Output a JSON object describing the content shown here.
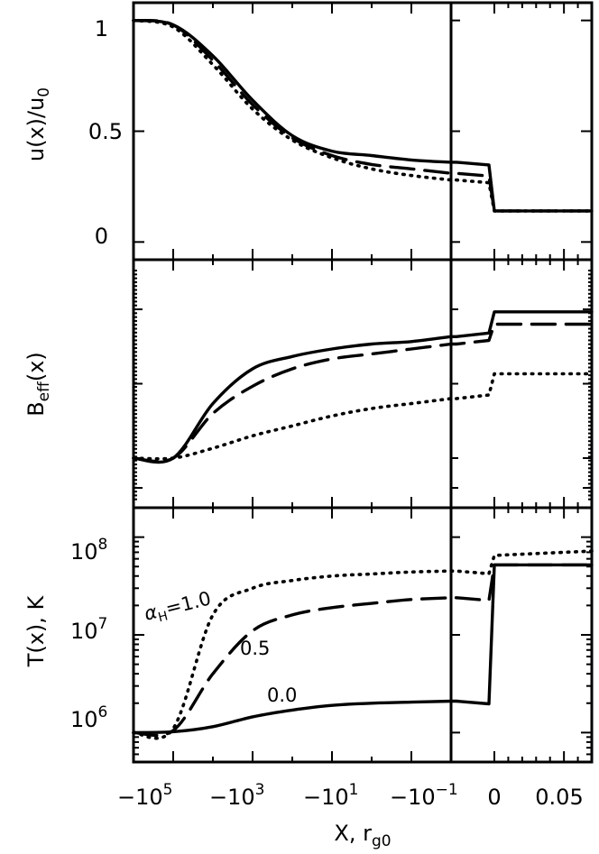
{
  "figure": {
    "xlabel_main": "X, r",
    "xlabel_sub": "g0",
    "x_tick_labels": [
      {
        "base": "−10",
        "exp": "5"
      },
      {
        "base": "−10",
        "exp": "3"
      },
      {
        "base": "−10",
        "exp": "1"
      },
      {
        "base": "−10",
        "exp": "−1"
      },
      {
        "base": "0",
        "exp": ""
      },
      {
        "base": "0.05",
        "exp": ""
      }
    ]
  },
  "chart_data": [
    {
      "type": "line",
      "panel": "top",
      "ylabel": "u(x)/u",
      "ylabel_sub": "0",
      "y_ticks": [
        "1",
        "0.5",
        "0"
      ],
      "ylim": [
        -0.08,
        1.08
      ],
      "x_axis": "broken: log-scaled negative X (left section) and linear X from 0 to 0.07 (right section)",
      "series": [
        {
          "style": "solid",
          "x": [
            "-1e6",
            "-1e5",
            "-1e4",
            "-1e3",
            "-1e2",
            "-1e1",
            "-1",
            "-0.1",
            "-0.01",
            "0",
            "0.07"
          ],
          "y": [
            1.0,
            0.98,
            0.84,
            0.64,
            0.48,
            0.41,
            0.39,
            0.37,
            0.36,
            0.14,
            0.14
          ]
        },
        {
          "style": "dashed",
          "x": [
            "-1e6",
            "-1e5",
            "-1e4",
            "-1e3",
            "-1e2",
            "-1e1",
            "-1",
            "-0.1",
            "-0.01",
            "0",
            "0.07"
          ],
          "y": [
            1.0,
            0.98,
            0.82,
            0.62,
            0.47,
            0.39,
            0.35,
            0.33,
            0.31,
            0.14,
            0.14
          ]
        },
        {
          "style": "dotted",
          "x": [
            "-1e6",
            "-1e5",
            "-1e4",
            "-1e3",
            "-1e2",
            "-1e1",
            "-1",
            "-0.1",
            "-0.01",
            "0",
            "0.07"
          ],
          "y": [
            1.0,
            0.97,
            0.8,
            0.6,
            0.46,
            0.38,
            0.33,
            0.3,
            0.28,
            0.14,
            0.14
          ]
        }
      ]
    },
    {
      "type": "line",
      "panel": "middle",
      "ylabel": "B",
      "ylabel_sub": "eff",
      "ylabel_suffix": "(x)",
      "y_ticks": [],
      "ylim": [
        0,
        1
      ],
      "series": [
        {
          "style": "solid",
          "x": [
            "-1e6",
            "-1e5",
            "-1e4",
            "-1e3",
            "-1e2",
            "-1e1",
            "-1",
            "-0.1",
            "-0.01",
            "0",
            "0.07"
          ],
          "y": [
            0.2,
            0.2,
            0.42,
            0.56,
            0.61,
            0.64,
            0.66,
            0.67,
            0.69,
            0.79,
            0.79
          ]
        },
        {
          "style": "dashed",
          "x": [
            "-1e6",
            "-1e5",
            "-1e4",
            "-1e3",
            "-1e2",
            "-1e1",
            "-1",
            "-0.1",
            "-0.01",
            "0",
            "0.07"
          ],
          "y": [
            0.2,
            0.2,
            0.38,
            0.49,
            0.56,
            0.6,
            0.62,
            0.64,
            0.66,
            0.74,
            0.74
          ]
        },
        {
          "style": "dotted",
          "x": [
            "-1e6",
            "-1e5",
            "-1e4",
            "-1e3",
            "-1e2",
            "-1e1",
            "-1",
            "-0.1",
            "-0.01",
            "0",
            "0.07"
          ],
          "y": [
            0.2,
            0.2,
            0.24,
            0.29,
            0.33,
            0.37,
            0.4,
            0.42,
            0.44,
            0.54,
            0.54
          ]
        }
      ]
    },
    {
      "type": "line",
      "panel": "bottom",
      "ylabel": "T(x), K",
      "yscale": "log",
      "y_tick_labels": [
        {
          "base": "10",
          "exp": "8"
        },
        {
          "base": "10",
          "exp": "7"
        },
        {
          "base": "10",
          "exp": "6"
        }
      ],
      "ylim": [
        500000.0,
        200000000.0
      ],
      "series": [
        {
          "name": "α=1.0",
          "style": "dotted",
          "x": [
            "-1e6",
            "-1e5",
            "-1e4",
            "-1e3",
            "-1e2",
            "-1e1",
            "-1",
            "-0.1",
            "-0.01",
            "0",
            "0.07"
          ],
          "y": [
            1000000.0,
            1100000.0,
            16000000.0,
            30000000.0,
            36000000.0,
            40000000.0,
            42000000.0,
            44000000.0,
            45000000.0,
            65000000.0,
            72000000.0
          ]
        },
        {
          "name": "0.5",
          "style": "dashed",
          "x": [
            "-1e6",
            "-1e5",
            "-1e4",
            "-1e3",
            "-1e2",
            "-1e1",
            "-1",
            "-0.1",
            "-0.01",
            "0",
            "0.07"
          ],
          "y": [
            1000000.0,
            1050000.0,
            4000000.0,
            11000000.0,
            16000000.0,
            19000000.0,
            21000000.0,
            23000000.0,
            24000000.0,
            52000000.0,
            52000000.0
          ]
        },
        {
          "name": "0.0",
          "style": "solid",
          "x": [
            "-1e6",
            "-1e5",
            "-1e4",
            "-1e3",
            "-1e2",
            "-1e1",
            "-1",
            "-0.1",
            "-0.01",
            "0",
            "0.07"
          ],
          "y": [
            1000000.0,
            1020000.0,
            1150000.0,
            1450000.0,
            1700000.0,
            1900000.0,
            2000000.0,
            2050000.0,
            2100000.0,
            52000000.0,
            52000000.0
          ]
        }
      ],
      "annotations": [
        {
          "greek": "α",
          "sub": "H",
          "text": "=1.0"
        },
        {
          "text": "0.5"
        },
        {
          "text": "0.0"
        }
      ]
    }
  ]
}
